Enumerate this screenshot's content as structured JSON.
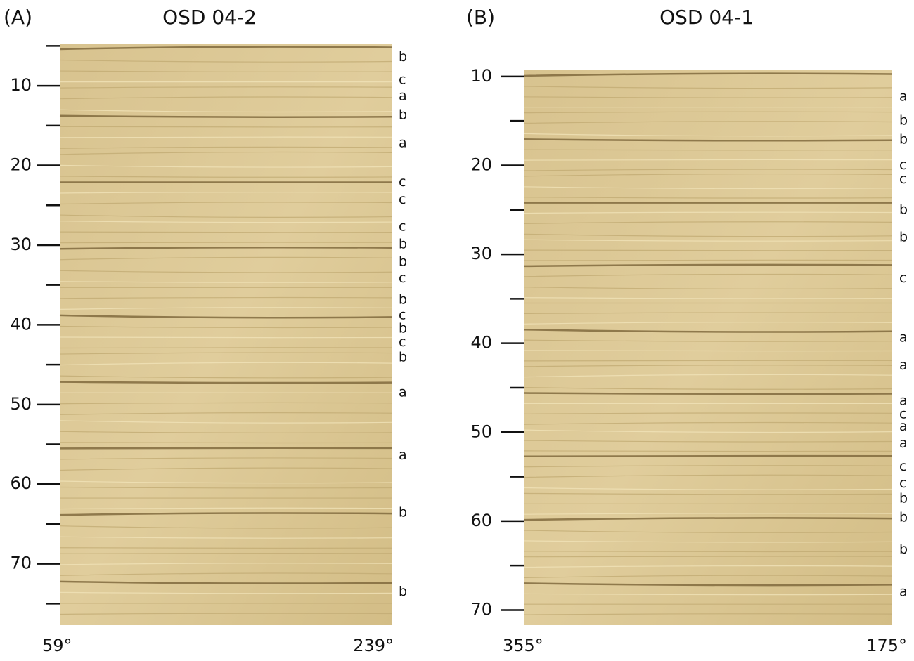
{
  "panels": [
    {
      "label": "(A)",
      "title": "OSD 04-2",
      "left_azimuth": "59°",
      "right_azimuth": "239°",
      "ylim": [
        4.7,
        77.7
      ],
      "major_ticks": [
        10,
        20,
        30,
        40,
        50,
        60,
        70
      ],
      "minor_ticks": [
        5,
        15,
        25,
        35,
        45,
        55,
        65,
        75
      ],
      "facies": [
        {
          "depth": 6.4,
          "label": "b"
        },
        {
          "depth": 9.3,
          "label": "c"
        },
        {
          "depth": 11.3,
          "label": "a"
        },
        {
          "depth": 13.7,
          "label": "b"
        },
        {
          "depth": 17.2,
          "label": "a"
        },
        {
          "depth": 22.1,
          "label": "c"
        },
        {
          "depth": 24.3,
          "label": "c"
        },
        {
          "depth": 27.7,
          "label": "c"
        },
        {
          "depth": 29.9,
          "label": "b"
        },
        {
          "depth": 32.1,
          "label": "b"
        },
        {
          "depth": 34.2,
          "label": "c"
        },
        {
          "depth": 36.9,
          "label": "b"
        },
        {
          "depth": 38.8,
          "label": "c"
        },
        {
          "depth": 40.5,
          "label": "b"
        },
        {
          "depth": 42.2,
          "label": "c"
        },
        {
          "depth": 44.1,
          "label": "b"
        },
        {
          "depth": 48.5,
          "label": "a"
        },
        {
          "depth": 56.4,
          "label": "a"
        },
        {
          "depth": 63.6,
          "label": "b"
        },
        {
          "depth": 73.5,
          "label": "b"
        }
      ]
    },
    {
      "label": "(B)",
      "title": "OSD 04-1",
      "left_azimuth": "355°",
      "right_azimuth": "175°",
      "ylim": [
        9.3,
        71.7
      ],
      "major_ticks": [
        10,
        20,
        30,
        40,
        50,
        60,
        70
      ],
      "minor_ticks": [
        15,
        25,
        35,
        45,
        55,
        65
      ],
      "facies": [
        {
          "depth": 12.3,
          "label": "a"
        },
        {
          "depth": 15.0,
          "label": "b"
        },
        {
          "depth": 17.1,
          "label": "b"
        },
        {
          "depth": 20.0,
          "label": "c"
        },
        {
          "depth": 21.6,
          "label": "c"
        },
        {
          "depth": 25.0,
          "label": "b"
        },
        {
          "depth": 28.1,
          "label": "b"
        },
        {
          "depth": 32.7,
          "label": "c"
        },
        {
          "depth": 39.4,
          "label": "a"
        },
        {
          "depth": 42.5,
          "label": "a"
        },
        {
          "depth": 46.5,
          "label": "a"
        },
        {
          "depth": 48.0,
          "label": "c"
        },
        {
          "depth": 49.4,
          "label": "a"
        },
        {
          "depth": 51.3,
          "label": "a"
        },
        {
          "depth": 53.9,
          "label": "c"
        },
        {
          "depth": 55.8,
          "label": "c"
        },
        {
          "depth": 57.5,
          "label": "b"
        },
        {
          "depth": 59.6,
          "label": "b"
        },
        {
          "depth": 63.2,
          "label": "b"
        },
        {
          "depth": 68.0,
          "label": "a"
        }
      ]
    }
  ]
}
